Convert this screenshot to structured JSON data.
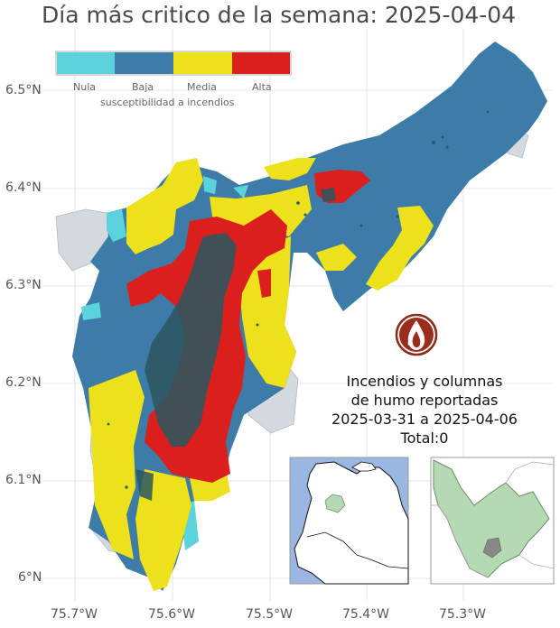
{
  "title": "Día más critico de la semana: 2025-04-04",
  "axes": {
    "y_ticks": [
      "6.5°N",
      "6.4°N",
      "6.3°N",
      "6.2°N",
      "6.1°N",
      "6°N"
    ],
    "x_ticks": [
      "75.7°W",
      "75.6°W",
      "75.5°W",
      "75.4°W",
      "75.3°W"
    ]
  },
  "legend": {
    "title": "susceptibilidad a incendios",
    "classes": [
      {
        "label": "Nula",
        "color": "#5bd3dc"
      },
      {
        "label": "Baja",
        "color": "#3d7ba8"
      },
      {
        "label": "Media",
        "color": "#ece11a"
      },
      {
        "label": "Alta",
        "color": "#da1f1c"
      }
    ]
  },
  "fire_panel": {
    "icon": "fire-icon",
    "line1": "Incendios y columnas",
    "line2": "de humo reportadas",
    "line3": "2025-03-31 a 2025-04-06",
    "line4": "Total:0"
  },
  "colors": {
    "outside_region": "#d4d8df",
    "dense_area": "#2b5660",
    "sea": "#9ab7e2",
    "inset_region": "#b5d9b2",
    "fire_badge": "#8a2a18"
  }
}
